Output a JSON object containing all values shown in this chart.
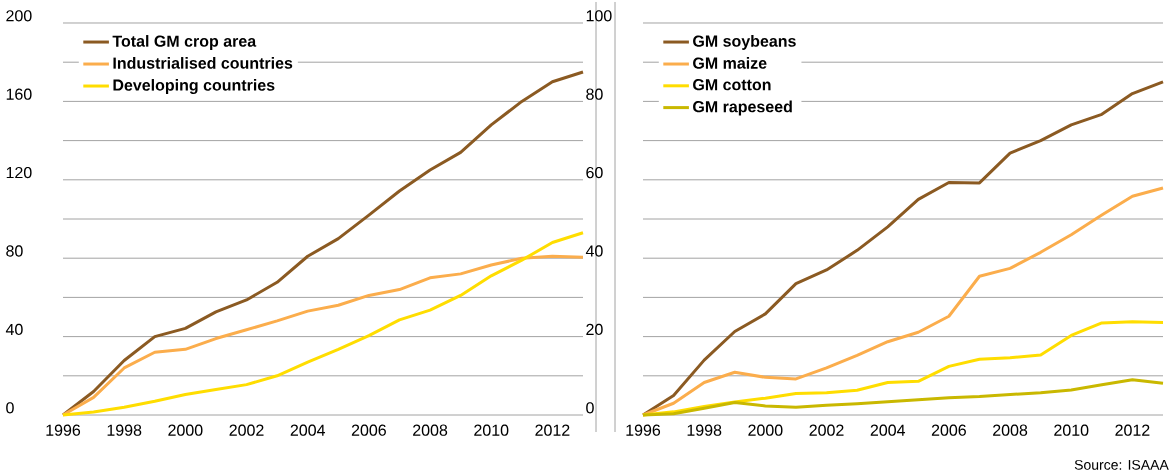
{
  "chart_data": [
    {
      "type": "line",
      "x": [
        1996,
        1997,
        1998,
        1999,
        2000,
        2001,
        2002,
        2003,
        2004,
        2005,
        2006,
        2007,
        2008,
        2009,
        2010,
        2011,
        2012,
        2013
      ],
      "xlim": [
        1996,
        2013
      ],
      "xticks": [
        1996,
        1998,
        2000,
        2002,
        2004,
        2006,
        2008,
        2010,
        2012
      ],
      "ylim": [
        0,
        200
      ],
      "yticks": [
        0,
        {
          "value": 20,
          "label": null
        },
        40,
        {
          "value": 60,
          "label": null
        },
        80,
        {
          "value": 100,
          "label": null
        },
        120,
        {
          "value": 140,
          "label": null
        },
        160,
        {
          "value": 180,
          "label": null
        },
        200
      ],
      "grid": "y",
      "legend": "top left",
      "marker": "none",
      "line_style": "solid",
      "series": [
        {
          "name": "Total GM crop area",
          "color": "#8b5a22",
          "values": [
            0,
            12,
            27.8,
            40,
            44.2,
            52.6,
            58.7,
            67.7,
            81,
            90,
            102,
            114.3,
            125,
            134,
            148,
            160,
            170,
            175
          ]
        },
        {
          "name": "Industrialised countries",
          "color": "#fbad4c",
          "values": [
            0,
            9,
            24,
            32,
            33.5,
            39,
            43.5,
            48,
            53,
            56,
            61,
            64,
            70,
            72,
            76.5,
            80,
            81,
            80.5
          ]
        },
        {
          "name": "Developing countries",
          "color": "#ffdd00",
          "values": [
            0,
            1.5,
            4,
            7,
            10.5,
            13,
            15.5,
            20,
            27,
            33.5,
            40.5,
            48.5,
            53.5,
            61,
            71,
            79,
            88,
            93
          ]
        }
      ]
    },
    {
      "type": "line",
      "x": [
        1996,
        1997,
        1998,
        1999,
        2000,
        2001,
        2002,
        2003,
        2004,
        2005,
        2006,
        2007,
        2008,
        2009,
        2010,
        2011,
        2012,
        2013
      ],
      "xlim": [
        1996,
        2013
      ],
      "xticks": [
        1996,
        1998,
        2000,
        2002,
        2004,
        2006,
        2008,
        2010,
        2012
      ],
      "ylim": [
        0,
        100
      ],
      "yticks": [
        0,
        {
          "value": 10,
          "label": null
        },
        20,
        {
          "value": 30,
          "label": null
        },
        40,
        {
          "value": 50,
          "label": null
        },
        60,
        {
          "value": 70,
          "label": null
        },
        80,
        {
          "value": 90,
          "label": null
        },
        100
      ],
      "grid": "y",
      "legend": "top left",
      "marker": "none",
      "line_style": "solid",
      "annotations": [
        "Source: ISAAA"
      ],
      "series": [
        {
          "name": "GM soybeans",
          "color": "#8b5a22",
          "values": [
            0,
            5,
            14,
            21.3,
            25.8,
            33.5,
            37,
            42,
            48,
            55,
            59.3,
            59.2,
            66.8,
            70,
            74,
            76.7,
            82,
            85
          ]
        },
        {
          "name": "GM maize",
          "color": "#fbad4c",
          "values": [
            0,
            3,
            8.3,
            10.9,
            9.6,
            9.2,
            12,
            15.2,
            18.7,
            21.1,
            25.2,
            35.4,
            37.4,
            41.5,
            46,
            51,
            55.8,
            57.9
          ]
        },
        {
          "name": "GM cotton",
          "color": "#ffdd00",
          "values": [
            0,
            0.8,
            2.2,
            3.3,
            4.3,
            5.5,
            5.7,
            6.3,
            8.3,
            8.6,
            12.4,
            14.2,
            14.6,
            15.3,
            20.3,
            23.5,
            23.8,
            23.6
          ]
        },
        {
          "name": "GM rapeseed",
          "color": "#c9b800",
          "values": [
            0,
            0.3,
            1.7,
            3.2,
            2.3,
            2.0,
            2.5,
            2.9,
            3.4,
            3.9,
            4.4,
            4.7,
            5.2,
            5.7,
            6.4,
            7.7,
            9.0,
            8.1
          ]
        }
      ]
    }
  ]
}
